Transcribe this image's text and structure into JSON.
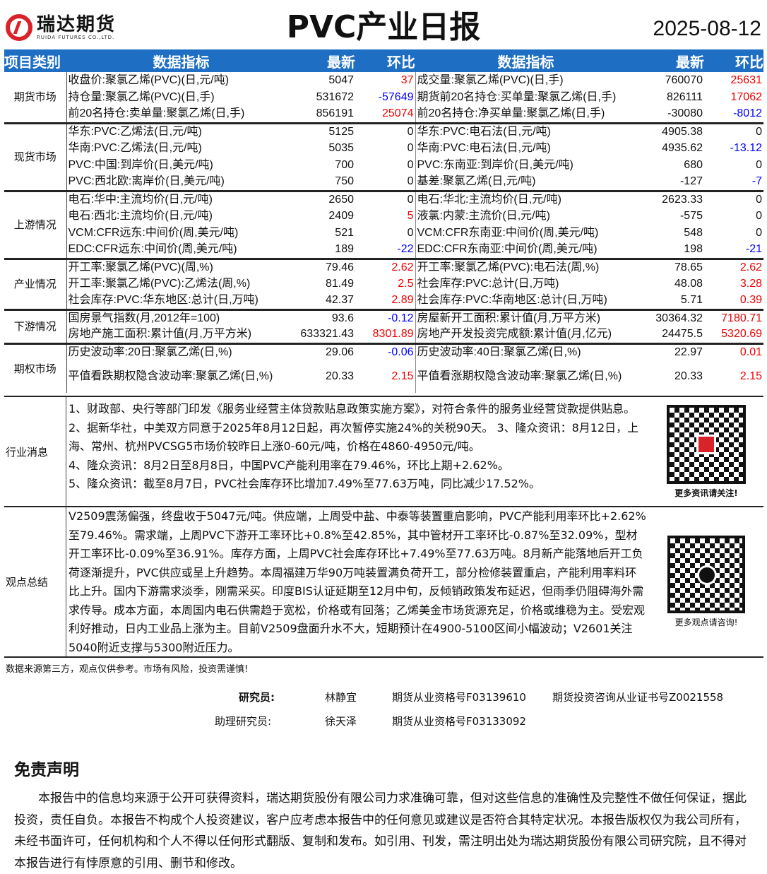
{
  "header": {
    "logo_cn": "瑞达期货",
    "logo_en": "RUIDA FUTURES CO.,LTD.",
    "title": "PVC产业日报",
    "date": "2025-08-12"
  },
  "table": {
    "headers": [
      "项目类别",
      "数据指标",
      "最新",
      "环比",
      "数据指标",
      "最新",
      "环比"
    ],
    "sections": [
      {
        "category": "期货市场",
        "rows": [
          [
            "收盘价:聚氯乙烯(PVC)(日,元/吨)",
            "5047",
            "37",
            "成交量:聚氯乙烯(PVC)(日,手)",
            "760070",
            "25631"
          ],
          [
            "持仓量:聚氯乙烯(PVC)(日,手)",
            "531672",
            "-57649",
            "期货前20名持仓:买单量:聚氯乙烯(日,手)",
            "826111",
            "17062"
          ],
          [
            "前20名持仓:卖单量:聚氯乙烯(日,手)",
            "856191",
            "25074",
            "前20名持仓:净买单量:聚氯乙烯(日,手)",
            "-30080",
            "-8012"
          ]
        ]
      },
      {
        "category": "现货市场",
        "rows": [
          [
            "华东:PVC:乙烯法(日,元/吨)",
            "5125",
            "0",
            "华东:PVC:电石法(日,元/吨)",
            "4905.38",
            "0"
          ],
          [
            "华南:PVC:乙烯法(日,元/吨)",
            "5035",
            "0",
            "华南:PVC:电石法(日,元/吨)",
            "4935.62",
            "-13.12"
          ],
          [
            "PVC:中国:到岸价(日,美元/吨)",
            "700",
            "0",
            "PVC:东南亚:到岸价(日,美元/吨)",
            "680",
            "0"
          ],
          [
            "PVC:西北欧:离岸价(日,美元/吨)",
            "750",
            "0",
            "基差:聚氯乙烯(日,元/吨)",
            "-127",
            "-7"
          ]
        ]
      },
      {
        "category": "上游情况",
        "rows": [
          [
            "电石:华中:主流均价(日,元/吨)",
            "2650",
            "0",
            "电石:华北:主流均价(日,元/吨)",
            "2623.33",
            "0"
          ],
          [
            "电石:西北:主流均价(日,元/吨)",
            "2409",
            "5",
            "液氯:内蒙:主流价(日,元/吨)",
            "-575",
            "0"
          ],
          [
            "VCM:CFR远东:中间价(周,美元/吨)",
            "521",
            "0",
            "VCM:CFR东南亚:中间价(周,美元/吨)",
            "548",
            "0"
          ],
          [
            "EDC:CFR远东:中间价(周,美元/吨)",
            "189",
            "-22",
            "EDC:CFR东南亚:中间价(周,美元/吨)",
            "198",
            "-21"
          ]
        ]
      },
      {
        "category": "产业情况",
        "rows": [
          [
            "开工率:聚氯乙烯(PVC)(周,%)",
            "79.46",
            "2.62",
            "开工率:聚氯乙烯(PVC):电石法(周,%)",
            "78.65",
            "2.62"
          ],
          [
            "开工率:聚氯乙烯(PVC):乙烯法(周,%)",
            "81.49",
            "2.5",
            "社会库存:PVC:总计(日,万吨)",
            "48.08",
            "3.28"
          ],
          [
            "社会库存:PVC:华东地区:总计(日,万吨)",
            "42.37",
            "2.89",
            "社会库存:PVC:华南地区:总计(日,万吨)",
            "5.71",
            "0.39"
          ]
        ]
      },
      {
        "category": "下游情况",
        "rows": [
          [
            "国房景气指数(月,2012年=100)",
            "93.6",
            "-0.12",
            "房屋新开工面积:累计值(月,万平方米)",
            "30364.32",
            "7180.71"
          ],
          [
            "房地产施工面积:累计值(月,万平方米)",
            "633321.43",
            "8301.89",
            "房地产开发投资完成额:累计值(月,亿元)",
            "24475.5",
            "5320.69"
          ]
        ]
      },
      {
        "category": "期权市场",
        "rows": [
          [
            "历史波动率:20日:聚氯乙烯(日,%)",
            "29.06",
            "-0.06",
            "历史波动率:40日:聚氯乙烯(日,%)",
            "22.97",
            "0.01"
          ],
          [
            "平值看跌期权隐含波动率:聚氯乙烯(日,%)",
            "20.33",
            "2.15",
            "平值看涨期权隐含波动率:聚氯乙烯(日,%)",
            "20.33",
            "2.15"
          ]
        ]
      }
    ]
  },
  "news": {
    "label": "行业消息",
    "text": "1、财政部、央行等部门印发《服务业经营主体贷款贴息政策实施方案》，对符合条件的服务业经营贷款提供贴息。 2、据新华社，中美双方同意于2025年8月12日起，再次暂停实施24%的关税90天。 3、隆众资讯：8月12日，上海、常州、杭州PVCSG5市场价较昨日上涨0-60元/吨，价格在4860-4950元/吨。",
    "line4": "4、隆众资讯：8月2日至8月8日，中国PVC产能利用率在79.46%，环比上期+2.62%。",
    "line5": "5、隆众资讯：截至8月7日，PVC社会库存环比增加7.49%至77.63万吨，同比减少17.52%。",
    "qr_caption": "更多资讯请关注!"
  },
  "view": {
    "label": "观点总结",
    "text": "V2509震荡偏强，终盘收于5047元/吨。供应端，上周受中盐、中泰等装置重启影响，PVC产能利用率环比+2.62%至79.46%。需求端，上周PVC下游开工率环比+0.8%至42.85%，其中管材开工率环比-0.87%至32.09%，型材开工率环比-0.09%至36.91%。库存方面，上周PVC社会库存环比+7.49%至77.63万吨。8月新产能落地后开工负荷逐渐提升，PVC供应或呈上升趋势。本周福建万华90万吨装置满负荷开工，部分检修装置重启，产能利用率料环比上升。国内下游需求淡季，刚需采买。印度BIS认证延期至12月中旬，反倾销政策发布延迟，但雨季仍阻碍海外需求传导。成本方面，本周国内电石供需趋于宽松，价格或有回落；乙烯美金市场货源充足，价格或维稳为主。受宏观利好推动，日内工业品上涨为主。目前V2509盘面升水不大，短期预计在4900-5100区间小幅波动；V2601关注5040附近支撑与5300附近压力。",
    "qr_caption": "更多观点请咨询!"
  },
  "source": "数据来源第三方，观点仅供参考。市场有风险，投资需谨慎!",
  "researchers": {
    "r_label": "研究员:",
    "r_name": "林静宜",
    "r_q1": "期货从业资格号F03139610",
    "r_q2": "期货投资咨询从业证书号Z0021558",
    "a_label": "助理研究员:",
    "a_name": "徐天泽",
    "a_q1": "期货从业资格号F03133092"
  },
  "disclaimer": {
    "title": "免责声明",
    "text": "本报告中的信息均来源于公开可获得资料，瑞达期货股份有限公司力求准确可靠，但对这些信息的准确性及完整性不做任何保证，据此投资，责任自负。本报告不构成个人投资建议，客户应考虑本报告中的任何意见或建议是否符合其特定状况。本报告版权仅为我公司所有，未经书面许可，任何机构和个人不得以任何形式翻版、复制和发布。如引用、刊发，需注明出处为瑞达期货股份有限公司研究院，且不得对本报告进行有悖原意的引用、删节和修改。"
  },
  "colors": {
    "header_bg": "#1e6fc4",
    "positive": "#e00000",
    "negative": "#0000ff",
    "brand": "#d9232a"
  }
}
